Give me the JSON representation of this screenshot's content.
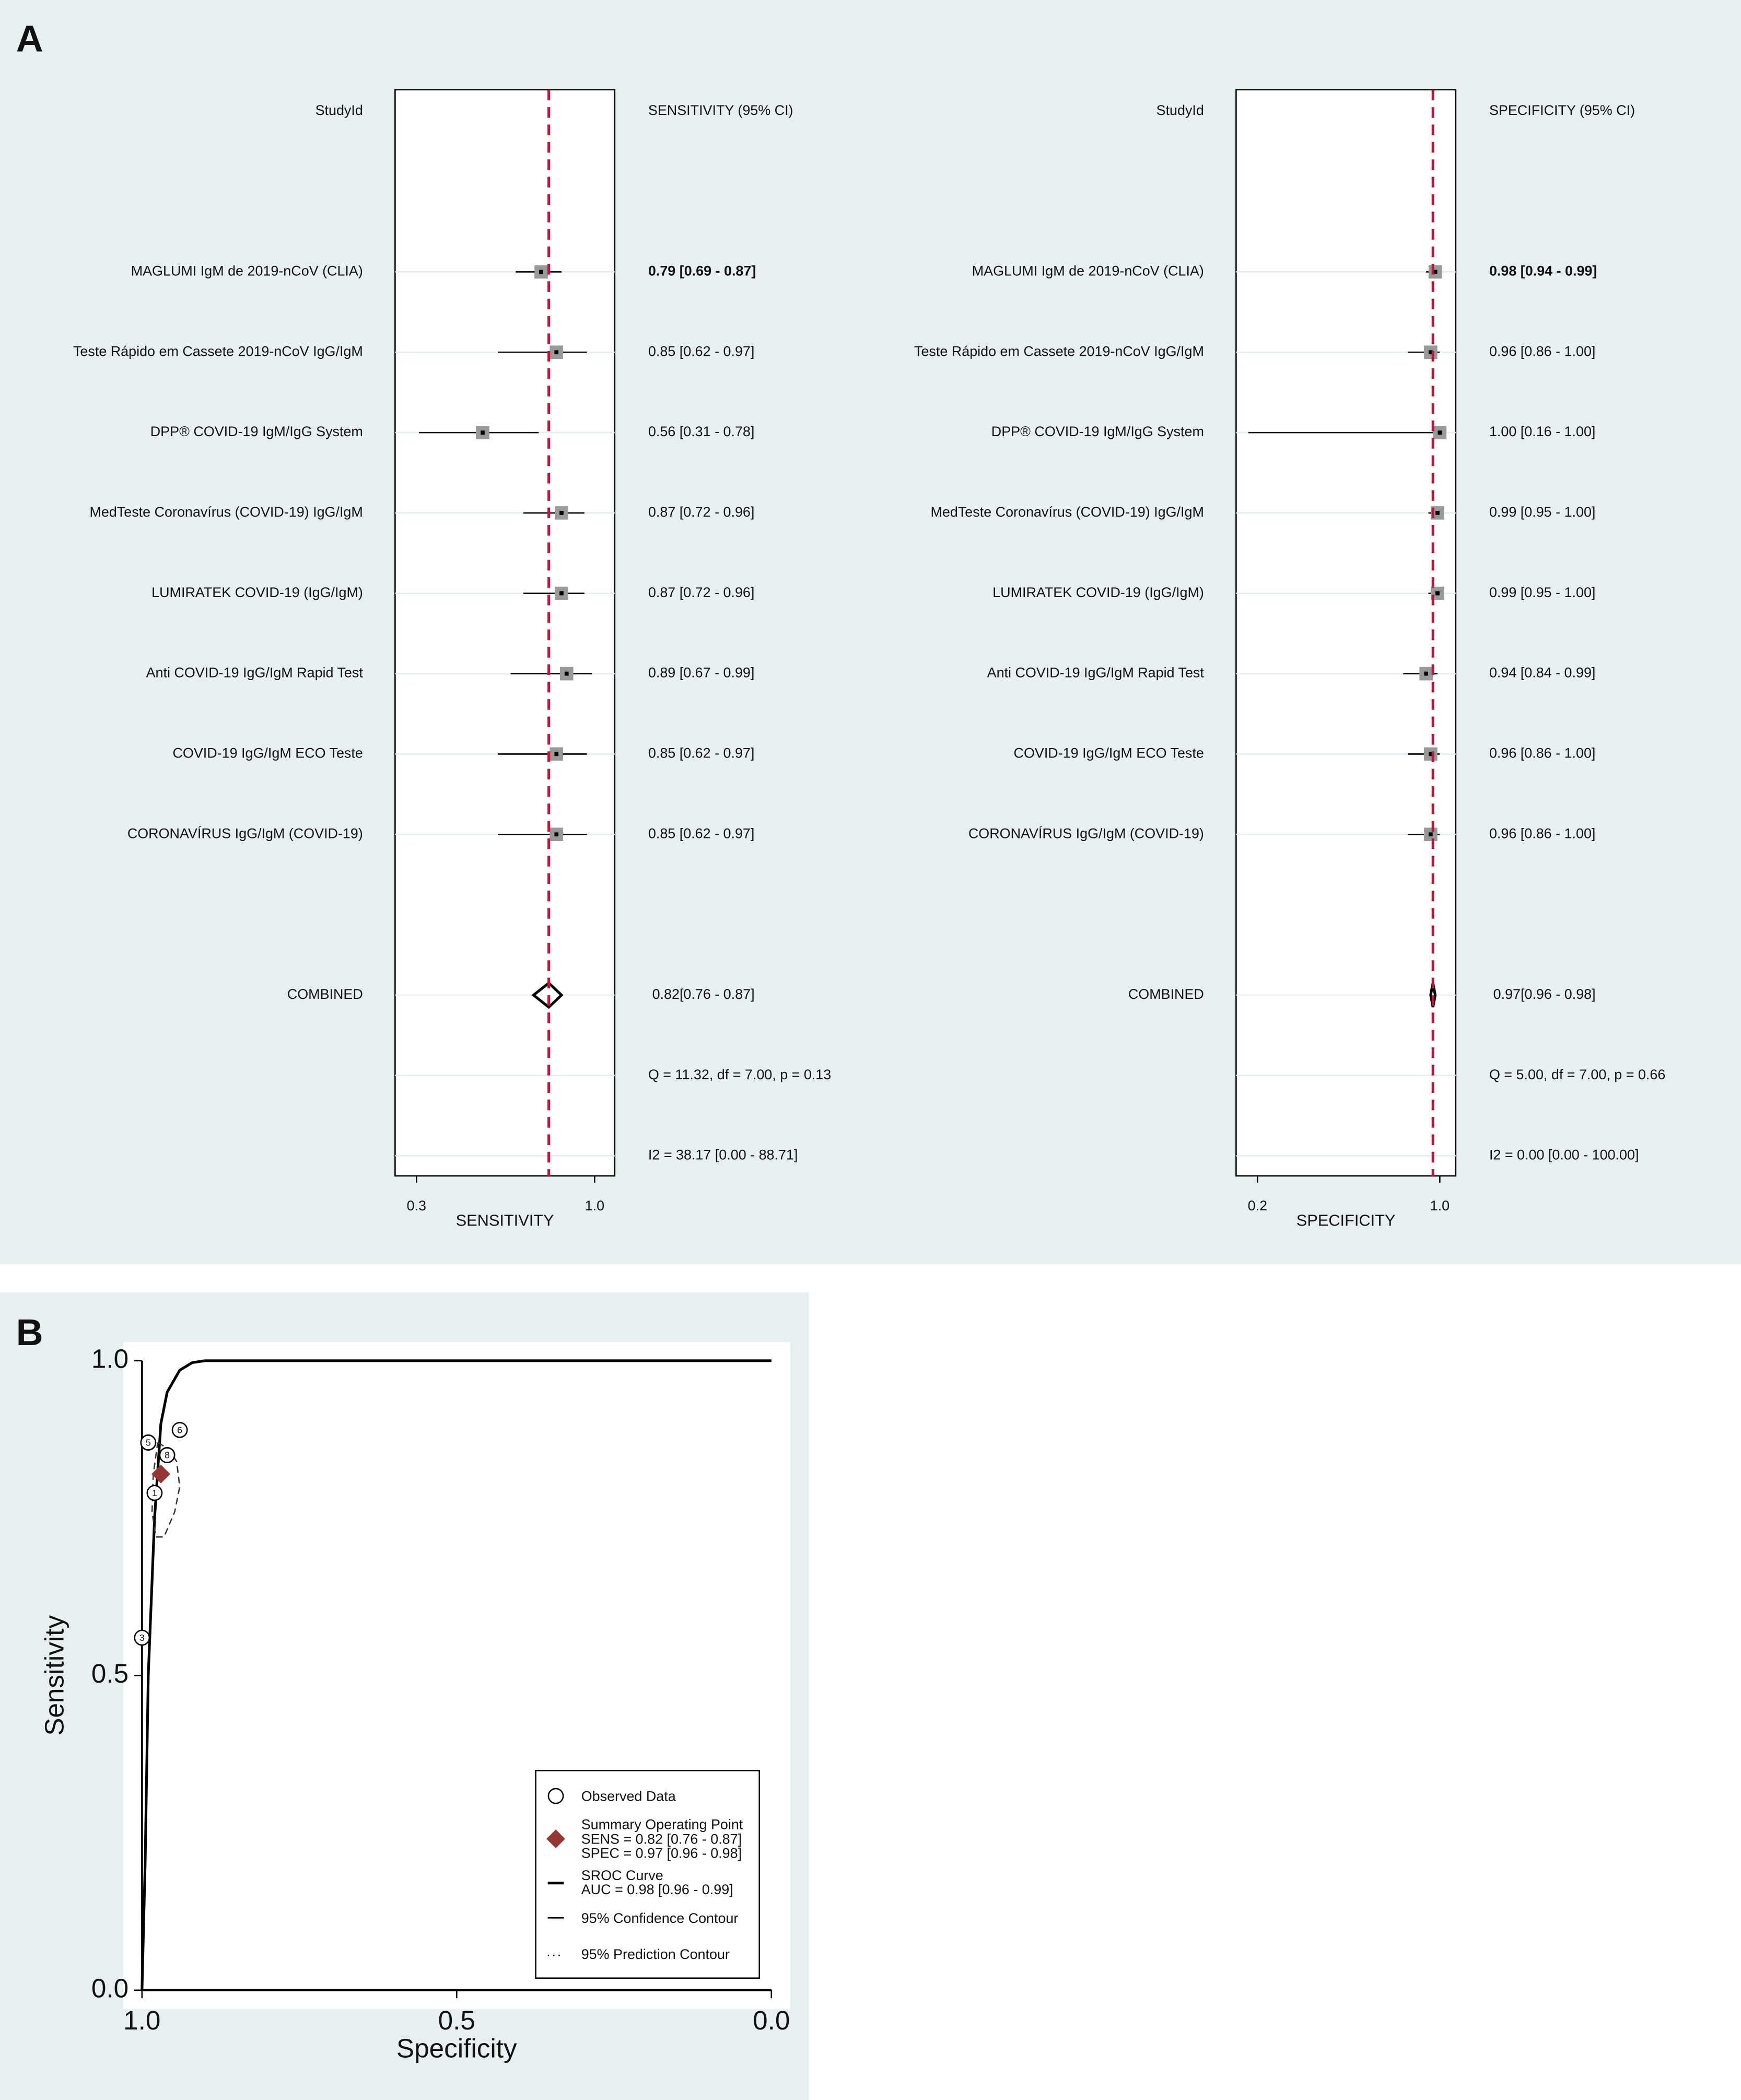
{
  "panel_labels": [
    "A",
    "B"
  ],
  "chart_data": [
    {
      "type": "forest",
      "label_header": "StudyId",
      "value_header": "SENSITIVITY (95% CI)",
      "xlabel": "SENSITIVITY",
      "categories": [
        "MAGLUMI IgM de 2019-nCoV (CLIA)",
        "Teste Rápido em Cassete 2019-nCoV IgG/IgM",
        "DPP® COVID-19 IgM/IgG System",
        "MedTeste Coronavírus (COVID-19) IgG/IgM",
        "LUMIRATEK COVID-19 (IgG/IgM)",
        "Anti COVID-19 IgG/IgM Rapid Test",
        "COVID-19 IgG/IgM ECO Teste",
        "CORONAVÍRUS IgG/IgM (COVID-19)"
      ],
      "values": [
        0.79,
        0.85,
        0.56,
        0.87,
        0.87,
        0.89,
        0.85,
        0.85
      ],
      "lower": [
        0.69,
        0.62,
        0.31,
        0.72,
        0.72,
        0.67,
        0.62,
        0.62
      ],
      "upper": [
        0.87,
        0.97,
        0.78,
        0.96,
        0.96,
        0.99,
        0.97,
        0.97
      ],
      "value_labels": [
        "0.79 [0.69 - 0.87]",
        "0.85 [0.62 - 0.97]",
        "0.56 [0.31 - 0.78]",
        "0.87 [0.72 - 0.96]",
        "0.87 [0.72 - 0.96]",
        "0.89 [0.67 - 0.99]",
        "0.85 [0.62 - 0.97]",
        "0.85 [0.62 - 0.97]"
      ],
      "summary": {
        "label": "COMBINED",
        "value": 0.82,
        "lower": 0.76,
        "upper": 0.87,
        "value_label": "0.82[0.76 - 0.87]"
      },
      "stats": [
        "Q = 11.32, df = 7.00, p =  0.13",
        "I2 = 38.17 [0.00 - 88.71]"
      ],
      "xlim": [
        0.216,
        1.079
      ],
      "xticks": [
        0.3,
        {
          "value": 1,
          "label": "1.0"
        }
      ],
      "reference_color": "#c0143c"
    },
    {
      "type": "forest",
      "label_header": "StudyId",
      "value_header": "SPECIFICITY (95% CI)",
      "xlabel": "SPECIFICITY",
      "categories": [
        "MAGLUMI IgM de 2019-nCoV (CLIA)",
        "Teste Rápido em Cassete 2019-nCoV IgG/IgM",
        "DPP® COVID-19 IgM/IgG System",
        "MedTeste Coronavírus (COVID-19) IgG/IgM",
        "LUMIRATEK COVID-19 (IgG/IgM)",
        "Anti COVID-19 IgG/IgM Rapid Test",
        "COVID-19 IgG/IgM ECO Teste",
        "CORONAVÍRUS IgG/IgM (COVID-19)"
      ],
      "values": [
        0.98,
        0.96,
        1.0,
        0.99,
        0.99,
        0.94,
        0.96,
        0.96
      ],
      "lower": [
        0.94,
        0.86,
        0.16,
        0.95,
        0.95,
        0.84,
        0.86,
        0.86
      ],
      "upper": [
        0.99,
        1.0,
        1.0,
        1.0,
        1.0,
        0.99,
        1.0,
        1.0
      ],
      "value_labels": [
        "0.98 [0.94 - 0.99]",
        "0.96 [0.86 - 1.00]",
        "1.00 [0.16 - 1.00]",
        "0.99 [0.95 - 1.00]",
        "0.99 [0.95 - 1.00]",
        "0.94 [0.84 - 0.99]",
        "0.96 [0.86 - 1.00]",
        "0.96 [0.86 - 1.00]"
      ],
      "summary": {
        "label": "COMBINED",
        "value": 0.97,
        "lower": 0.96,
        "upper": 0.98,
        "value_label": "0.97[0.96 - 0.98]"
      },
      "stats": [
        "Q =  5.00, df = 7.00, p =  0.66",
        "I2 = 0.00 [0.00 - 100.00]"
      ],
      "xlim": [
        0.106,
        1.07
      ],
      "xticks": [
        0.2,
        {
          "value": 1,
          "label": "1.0"
        }
      ],
      "reference_color": "#c0143c"
    },
    {
      "type": "sroc",
      "xlabel": "Specificity",
      "ylabel": "Sensitivity",
      "xlim": [
        1,
        0
      ],
      "ylim": [
        0,
        1
      ],
      "xticks": [
        {
          "value": 1,
          "label": "1.0"
        },
        0.5,
        {
          "value": 0,
          "label": "0.0"
        }
      ],
      "yticks": [
        {
          "value": 0,
          "label": "0.0"
        },
        0.5,
        {
          "value": 1,
          "label": "1.0"
        }
      ],
      "observed": {
        "name": "Observed Data",
        "x": [
          0.98,
          0.96,
          1.0,
          0.99,
          0.99,
          0.94,
          0.96,
          0.96
        ],
        "values": [
          0.79,
          0.85,
          0.56,
          0.87,
          0.87,
          0.89,
          0.85,
          0.85
        ],
        "point_labels": [
          "1",
          "2",
          "3",
          "4",
          "5",
          "6",
          "7",
          "8"
        ]
      },
      "summary": {
        "name": "Summary Operating Point",
        "details": [
          "SENS = 0.82 [0.76 - 0.87]",
          "SPEC = 0.97 [0.96 - 0.98]"
        ],
        "x": 0.97,
        "value": 0.82,
        "color": "#953735"
      },
      "curve": {
        "name": "SROC Curve",
        "details": [
          "AUC = 0.98 [0.96 - 0.99]"
        ],
        "x": [
          1.0,
          0.995,
          0.99,
          0.98,
          0.97,
          0.96,
          0.94,
          0.92,
          0.9,
          0.0
        ],
        "y": [
          0,
          0.2,
          0.5,
          0.75,
          0.9,
          0.95,
          0.985,
          0.997,
          1.0,
          1.0
        ]
      },
      "confidence_contour": {
        "name": "95% Confidence Contour",
        "x": [
          0.975,
          0.958,
          0.945,
          0.94,
          0.948,
          0.965,
          0.978,
          0.984,
          0.982,
          0.975
        ],
        "y": [
          0.87,
          0.86,
          0.84,
          0.8,
          0.76,
          0.72,
          0.72,
          0.76,
          0.82,
          0.87
        ]
      },
      "prediction_contour": {
        "name": "95% Prediction Contour"
      }
    }
  ]
}
